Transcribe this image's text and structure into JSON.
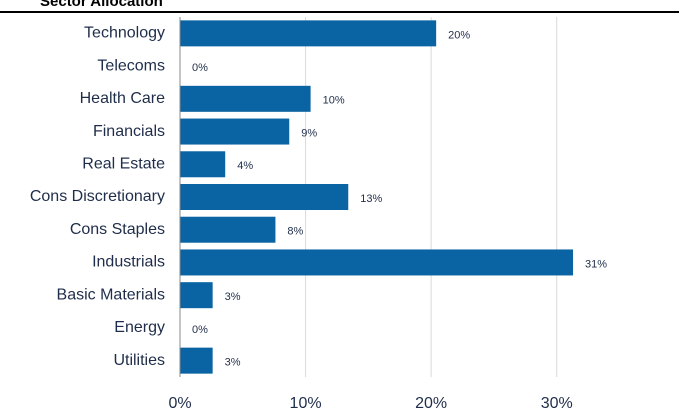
{
  "chart_data": {
    "type": "bar",
    "orientation": "horizontal",
    "title": "Sector Allocation",
    "categories": [
      "Technology",
      "Telecoms",
      "Health Care",
      "Financials",
      "Real Estate",
      "Cons Discretionary",
      "Cons Staples",
      "Industrials",
      "Basic Materials",
      "Energy",
      "Utilities"
    ],
    "values": [
      20.4,
      0,
      10.4,
      8.7,
      3.6,
      13.4,
      7.6,
      31.3,
      2.6,
      0,
      2.6
    ],
    "value_labels": [
      "20%",
      "0%",
      "10%",
      "9%",
      "4%",
      "13%",
      "8%",
      "31%",
      "3%",
      "0%",
      "3%"
    ],
    "color": "#0a64a4",
    "xlim": [
      0,
      39.5
    ],
    "xticks": [
      {
        "value": 0,
        "label": "0%"
      },
      {
        "value": 10,
        "label": "10%"
      },
      {
        "value": 20,
        "label": "20%"
      },
      {
        "value": 30,
        "label": "30%"
      }
    ],
    "grid": true
  }
}
